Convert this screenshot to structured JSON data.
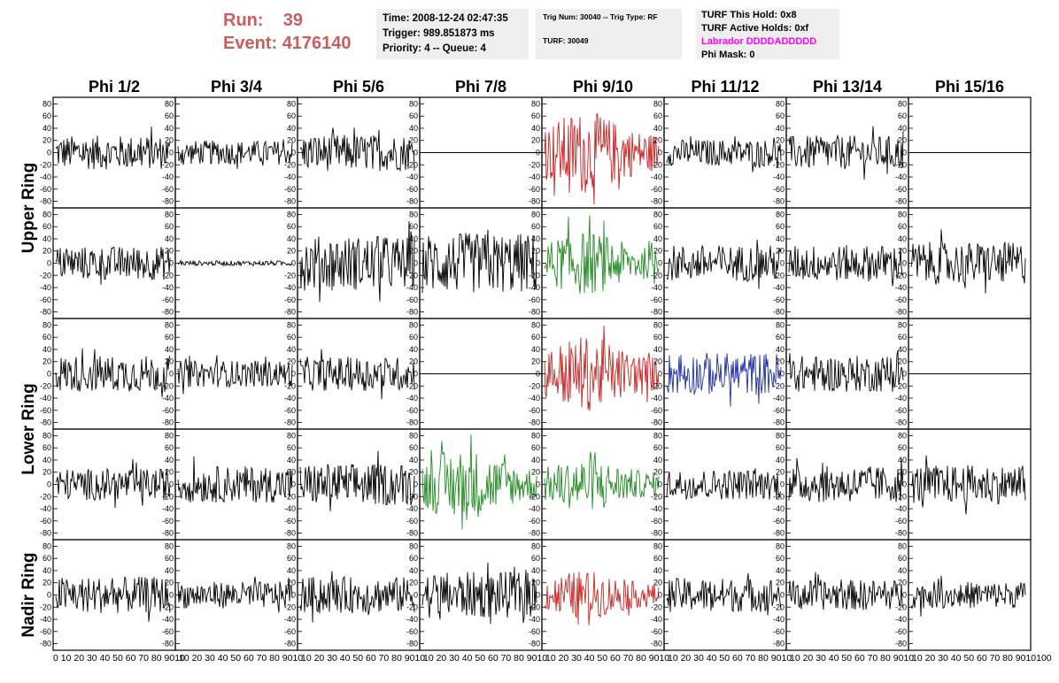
{
  "header": {
    "run_label": "Run:",
    "run_value": "39",
    "event_label": "Event:",
    "event_value": "4176140",
    "time": "Time: 2008-12-24 02:47:35",
    "trigger": "Trigger: 989.851873 ms",
    "priority": "Priority: 4 -- Queue: 4",
    "trig_num": "Trig Num: 30040 -- Trig Type: RF",
    "turf": "TURF: 30049",
    "turf_this_hold": "TURF This Hold: 0x8",
    "turf_active_holds": "TURF Active Holds: 0xf",
    "labrador": "Labrador DDDDADDDDD",
    "phi_mask": "Phi Mask: 0"
  },
  "chart_data": {
    "type": "line",
    "columns": [
      "Phi 1/2",
      "Phi 3/4",
      "Phi 5/6",
      "Phi 7/8",
      "Phi 9/10",
      "Phi 11/12",
      "Phi 13/14",
      "Phi 15/16"
    ],
    "row_groups": [
      "Upper Ring",
      "Lower Ring",
      "Nadir Ring"
    ],
    "ylim": [
      -85,
      85
    ],
    "y_ticks": [
      -80,
      -60,
      -40,
      -20,
      0,
      20,
      40,
      60,
      80
    ],
    "xlim": [
      0,
      100
    ],
    "x_ticks": [
      0,
      10,
      20,
      30,
      40,
      50,
      60,
      70,
      80,
      90
    ],
    "x_axis_labels": [
      "0 10 20 30 40 50 60 70 80 9010",
      "10 20 30 40 50 60 70 80 9010",
      "10 20 30 40 50 60 70 80 9010",
      "10 20 30 40 50 60 70 80 9010",
      "10 20 30 40 50 60 70 80 9010",
      "10 20 30 40 50 60 70 80 9010",
      "10 20 30 40 50 60 70 80 9010",
      "10 20 30 40 50 60 70 80 9010100"
    ],
    "trace_colors": {
      "black": "#000000",
      "red": "#cc2222",
      "green": "#228b22",
      "blue": "#1f2f9f"
    },
    "panels": [
      [
        "black",
        "black",
        "black",
        "flat",
        "red",
        "black",
        "black",
        "flat"
      ],
      [
        "black",
        "flatsmall",
        "black",
        "black",
        "green",
        "black",
        "black",
        "black"
      ],
      [
        "black",
        "black",
        "black",
        "flat",
        "red",
        "blue",
        "black",
        "flat"
      ],
      [
        "black",
        "black",
        "black",
        "green",
        "green",
        "black",
        "black",
        "black"
      ],
      [
        "black",
        "black",
        "black",
        "black",
        "red",
        "black",
        "black",
        "black"
      ]
    ],
    "amplitudes": [
      [
        28,
        20,
        30,
        0,
        55,
        22,
        28,
        0
      ],
      [
        28,
        4,
        45,
        50,
        42,
        30,
        30,
        35
      ],
      [
        30,
        22,
        28,
        0,
        50,
        35,
        30,
        0
      ],
      [
        26,
        30,
        35,
        48,
        35,
        25,
        30,
        32
      ],
      [
        30,
        22,
        30,
        38,
        32,
        28,
        25,
        22
      ]
    ]
  }
}
